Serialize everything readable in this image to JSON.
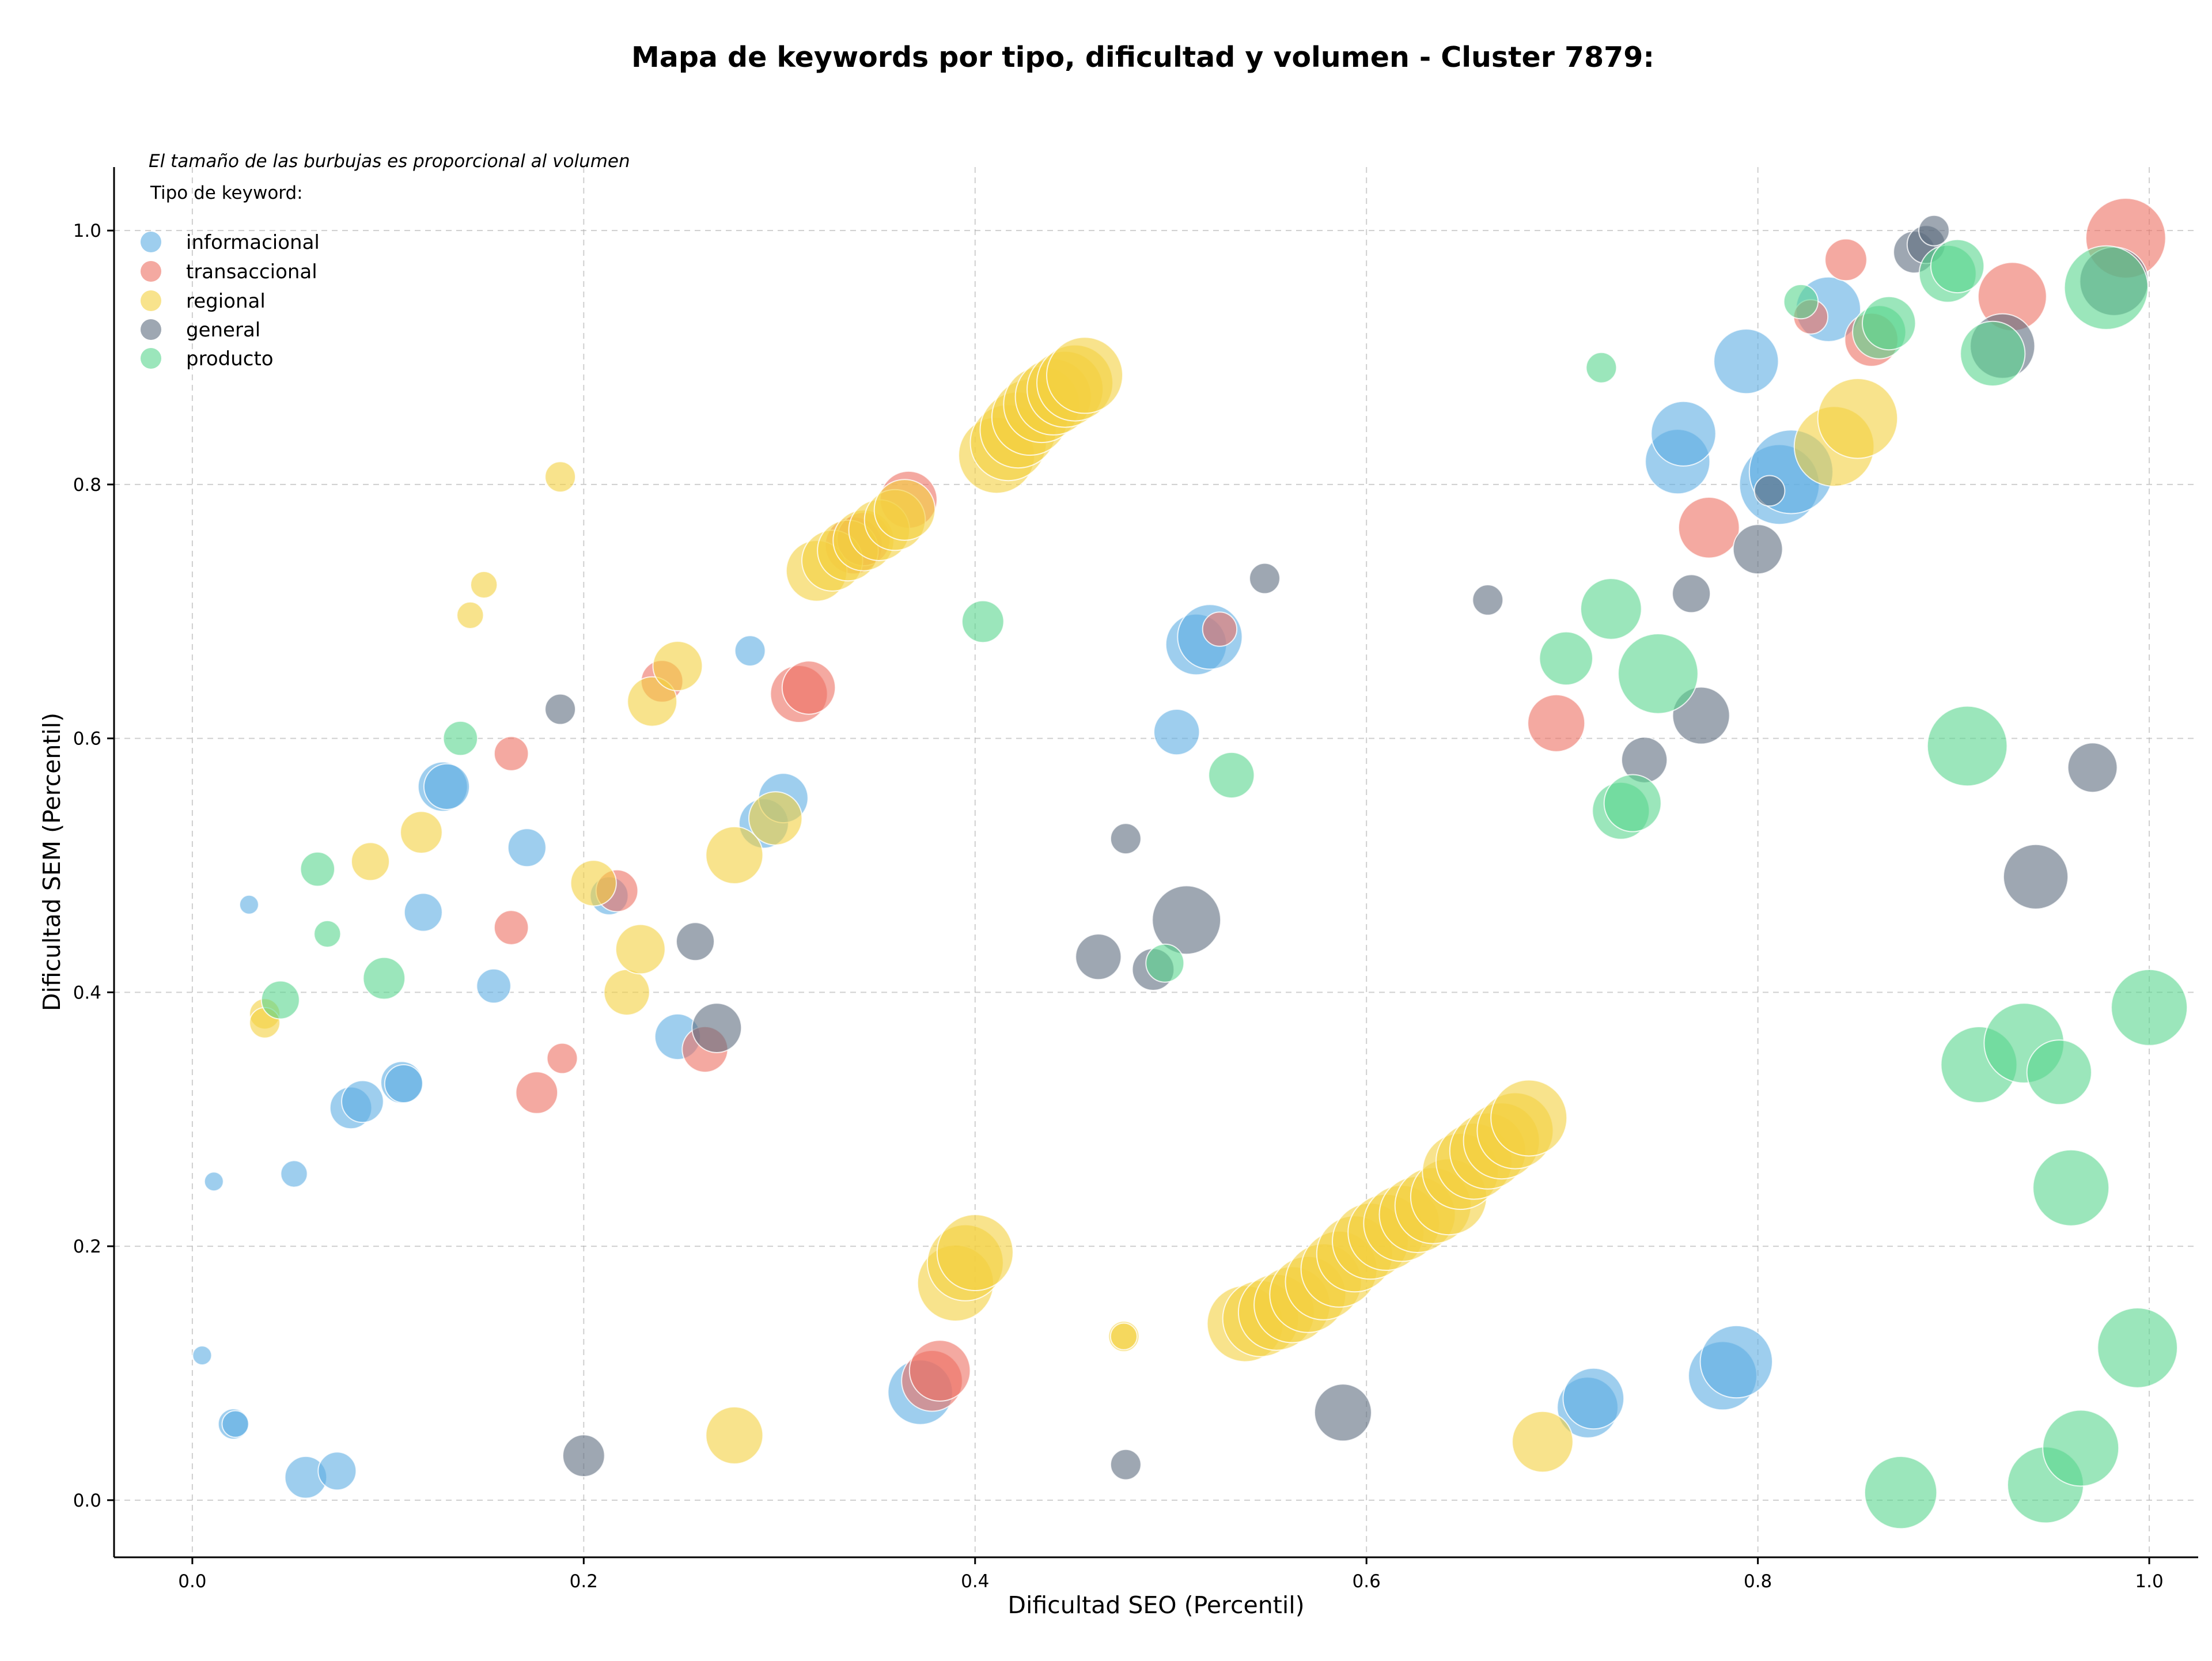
{
  "chart_data": {
    "type": "scatter",
    "title": "Mapa de keywords por tipo, dificultad y volumen - Cluster 7879:",
    "xlabel": "Dificultad SEO (Percentil)",
    "ylabel": "Dificultad SEM (Percentil)",
    "xlim": [
      -0.04,
      1.025
    ],
    "ylim": [
      -0.045,
      1.05
    ],
    "xticks": [
      0.0,
      0.2,
      0.4,
      0.6,
      0.8,
      1.0
    ],
    "yticks": [
      0.0,
      0.2,
      0.4,
      0.6,
      0.8,
      1.0
    ],
    "xtick_labels": [
      "0.0",
      "0.2",
      "0.4",
      "0.6",
      "0.8",
      "1.0"
    ],
    "ytick_labels": [
      "0.0",
      "0.2",
      "0.4",
      "0.6",
      "0.8",
      "1.0"
    ],
    "grid": true,
    "legend_placement": "top-left",
    "note": "El tamaño de las burbujas es proporcional al volumen",
    "legend_title": "Tipo de keyword:",
    "series": [
      {
        "name": "informacional",
        "color": "#5DADE2",
        "points": [
          [
            0.005,
            0.114,
            5
          ],
          [
            0.011,
            0.251,
            5
          ],
          [
            0.021,
            0.06,
            8
          ],
          [
            0.022,
            0.06,
            7
          ],
          [
            0.029,
            0.469,
            5
          ],
          [
            0.052,
            0.257,
            7
          ],
          [
            0.058,
            0.018,
            11
          ],
          [
            0.074,
            0.023,
            10
          ],
          [
            0.081,
            0.309,
            11
          ],
          [
            0.087,
            0.314,
            11
          ],
          [
            0.107,
            0.329,
            11
          ],
          [
            0.108,
            0.328,
            10
          ],
          [
            0.118,
            0.463,
            10
          ],
          [
            0.128,
            0.562,
            13
          ],
          [
            0.13,
            0.562,
            12
          ],
          [
            0.154,
            0.405,
            9
          ],
          [
            0.171,
            0.514,
            10
          ],
          [
            0.213,
            0.476,
            10
          ],
          [
            0.248,
            0.365,
            12
          ],
          [
            0.285,
            0.669,
            8
          ],
          [
            0.292,
            0.533,
            13
          ],
          [
            0.302,
            0.553,
            13
          ],
          [
            0.372,
            0.085,
            17
          ],
          [
            0.503,
            0.605,
            12
          ],
          [
            0.513,
            0.674,
            16
          ],
          [
            0.52,
            0.68,
            17
          ],
          [
            0.713,
            0.073,
            16
          ],
          [
            0.716,
            0.08,
            16
          ],
          [
            0.782,
            0.098,
            18
          ],
          [
            0.789,
            0.109,
            19
          ],
          [
            0.759,
            0.818,
            17
          ],
          [
            0.762,
            0.84,
            17
          ],
          [
            0.794,
            0.897,
            17
          ],
          [
            0.811,
            0.8,
            21
          ],
          [
            0.817,
            0.81,
            22
          ],
          [
            0.836,
            0.938,
            17
          ]
        ]
      },
      {
        "name": "transaccional",
        "color": "#EC7063",
        "points": [
          [
            0.163,
            0.588,
            9
          ],
          [
            0.163,
            0.451,
            9
          ],
          [
            0.176,
            0.321,
            11
          ],
          [
            0.189,
            0.348,
            8
          ],
          [
            0.217,
            0.48,
            11
          ],
          [
            0.24,
            0.645,
            11
          ],
          [
            0.262,
            0.355,
            12
          ],
          [
            0.31,
            0.635,
            15
          ],
          [
            0.315,
            0.64,
            14
          ],
          [
            0.338,
            0.752,
            15
          ],
          [
            0.343,
            0.757,
            14
          ],
          [
            0.366,
            0.788,
            15
          ],
          [
            0.378,
            0.094,
            16
          ],
          [
            0.382,
            0.102,
            16
          ],
          [
            0.525,
            0.686,
            9
          ],
          [
            0.697,
            0.612,
            15
          ],
          [
            0.775,
            0.766,
            16
          ],
          [
            0.827,
            0.932,
            9
          ],
          [
            0.845,
            0.977,
            11
          ],
          [
            0.858,
            0.914,
            14
          ],
          [
            0.93,
            0.948,
            18
          ],
          [
            0.988,
            0.994,
            21
          ]
        ]
      },
      {
        "name": "regional",
        "color": "#F4D03F",
        "points": [
          [
            0.037,
            0.383,
            8
          ],
          [
            0.037,
            0.376,
            8
          ],
          [
            0.091,
            0.503,
            10
          ],
          [
            0.117,
            0.526,
            11
          ],
          [
            0.142,
            0.697,
            7
          ],
          [
            0.149,
            0.721,
            7
          ],
          [
            0.188,
            0.806,
            8
          ],
          [
            0.205,
            0.486,
            12
          ],
          [
            0.222,
            0.4,
            12
          ],
          [
            0.229,
            0.434,
            13
          ],
          [
            0.235,
            0.629,
            13
          ],
          [
            0.248,
            0.657,
            13
          ],
          [
            0.277,
            0.508,
            15
          ],
          [
            0.277,
            0.051,
            15
          ],
          [
            0.298,
            0.537,
            14
          ],
          [
            0.319,
            0.732,
            16
          ],
          [
            0.327,
            0.74,
            16
          ],
          [
            0.335,
            0.748,
            16
          ],
          [
            0.343,
            0.756,
            16
          ],
          [
            0.351,
            0.764,
            16
          ],
          [
            0.359,
            0.772,
            16
          ],
          [
            0.364,
            0.78,
            16
          ],
          [
            0.411,
            0.823,
            20
          ],
          [
            0.417,
            0.833,
            20
          ],
          [
            0.422,
            0.843,
            20
          ],
          [
            0.428,
            0.853,
            20
          ],
          [
            0.434,
            0.863,
            20
          ],
          [
            0.44,
            0.869,
            20
          ],
          [
            0.446,
            0.875,
            20
          ],
          [
            0.451,
            0.88,
            20
          ],
          [
            0.456,
            0.886,
            20
          ],
          [
            0.39,
            0.171,
            20
          ],
          [
            0.395,
            0.187,
            20
          ],
          [
            0.4,
            0.195,
            20
          ],
          [
            0.476,
            0.129,
            8
          ],
          [
            0.476,
            0.129,
            7
          ],
          [
            0.538,
            0.139,
            20
          ],
          [
            0.546,
            0.143,
            20
          ],
          [
            0.554,
            0.148,
            20
          ],
          [
            0.562,
            0.154,
            20
          ],
          [
            0.57,
            0.162,
            20
          ],
          [
            0.578,
            0.172,
            20
          ],
          [
            0.586,
            0.182,
            20
          ],
          [
            0.594,
            0.194,
            20
          ],
          [
            0.602,
            0.204,
            20
          ],
          [
            0.61,
            0.211,
            20
          ],
          [
            0.618,
            0.218,
            20
          ],
          [
            0.626,
            0.225,
            20
          ],
          [
            0.634,
            0.232,
            20
          ],
          [
            0.642,
            0.239,
            20
          ],
          [
            0.648,
            0.259,
            20
          ],
          [
            0.655,
            0.267,
            20
          ],
          [
            0.662,
            0.275,
            20
          ],
          [
            0.669,
            0.283,
            20
          ],
          [
            0.676,
            0.291,
            20
          ],
          [
            0.683,
            0.301,
            20
          ],
          [
            0.69,
            0.046,
            16
          ],
          [
            0.839,
            0.83,
            21
          ],
          [
            0.851,
            0.852,
            21
          ]
        ]
      },
      {
        "name": "general",
        "color": "#5D6D7E",
        "points": [
          [
            0.188,
            0.623,
            8
          ],
          [
            0.2,
            0.035,
            11
          ],
          [
            0.257,
            0.44,
            10
          ],
          [
            0.268,
            0.372,
            13
          ],
          [
            0.477,
            0.521,
            8
          ],
          [
            0.477,
            0.028,
            8
          ],
          [
            0.463,
            0.428,
            12
          ],
          [
            0.491,
            0.418,
            11
          ],
          [
            0.508,
            0.457,
            18
          ],
          [
            0.548,
            0.726,
            8
          ],
          [
            0.588,
            0.069,
            15
          ],
          [
            0.662,
            0.709,
            8
          ],
          [
            0.742,
            0.583,
            12
          ],
          [
            0.766,
            0.714,
            10
          ],
          [
            0.771,
            0.618,
            15
          ],
          [
            0.8,
            0.749,
            13
          ],
          [
            0.806,
            0.795,
            8
          ],
          [
            0.88,
            0.983,
            11
          ],
          [
            0.886,
            0.989,
            10
          ],
          [
            0.89,
            1.0,
            8
          ],
          [
            0.925,
            0.909,
            17
          ],
          [
            0.942,
            0.491,
            17
          ],
          [
            0.971,
            0.577,
            13
          ],
          [
            0.982,
            0.96,
            18
          ]
        ]
      },
      {
        "name": "producto",
        "color": "#58D68D",
        "points": [
          [
            0.045,
            0.394,
            10
          ],
          [
            0.064,
            0.497,
            9
          ],
          [
            0.069,
            0.446,
            7
          ],
          [
            0.098,
            0.411,
            11
          ],
          [
            0.137,
            0.6,
            9
          ],
          [
            0.404,
            0.692,
            11
          ],
          [
            0.497,
            0.423,
            10
          ],
          [
            0.531,
            0.571,
            12
          ],
          [
            0.702,
            0.663,
            14
          ],
          [
            0.72,
            0.892,
            8
          ],
          [
            0.725,
            0.702,
            16
          ],
          [
            0.73,
            0.543,
            15
          ],
          [
            0.736,
            0.549,
            15
          ],
          [
            0.749,
            0.651,
            21
          ],
          [
            0.822,
            0.944,
            9
          ],
          [
            0.862,
            0.92,
            14
          ],
          [
            0.867,
            0.927,
            14
          ],
          [
            0.873,
            0.006,
            19
          ],
          [
            0.897,
            0.966,
            15
          ],
          [
            0.902,
            0.972,
            14
          ],
          [
            0.907,
            0.594,
            21
          ],
          [
            0.913,
            0.343,
            20
          ],
          [
            0.92,
            0.903,
            17
          ],
          [
            0.936,
            0.36,
            21
          ],
          [
            0.947,
            0.012,
            20
          ],
          [
            0.954,
            0.337,
            17
          ],
          [
            0.96,
            0.246,
            20
          ],
          [
            0.965,
            0.041,
            20
          ],
          [
            0.978,
            0.955,
            22
          ],
          [
            0.994,
            0.12,
            21
          ],
          [
            1.0,
            0.388,
            20
          ]
        ]
      }
    ]
  }
}
